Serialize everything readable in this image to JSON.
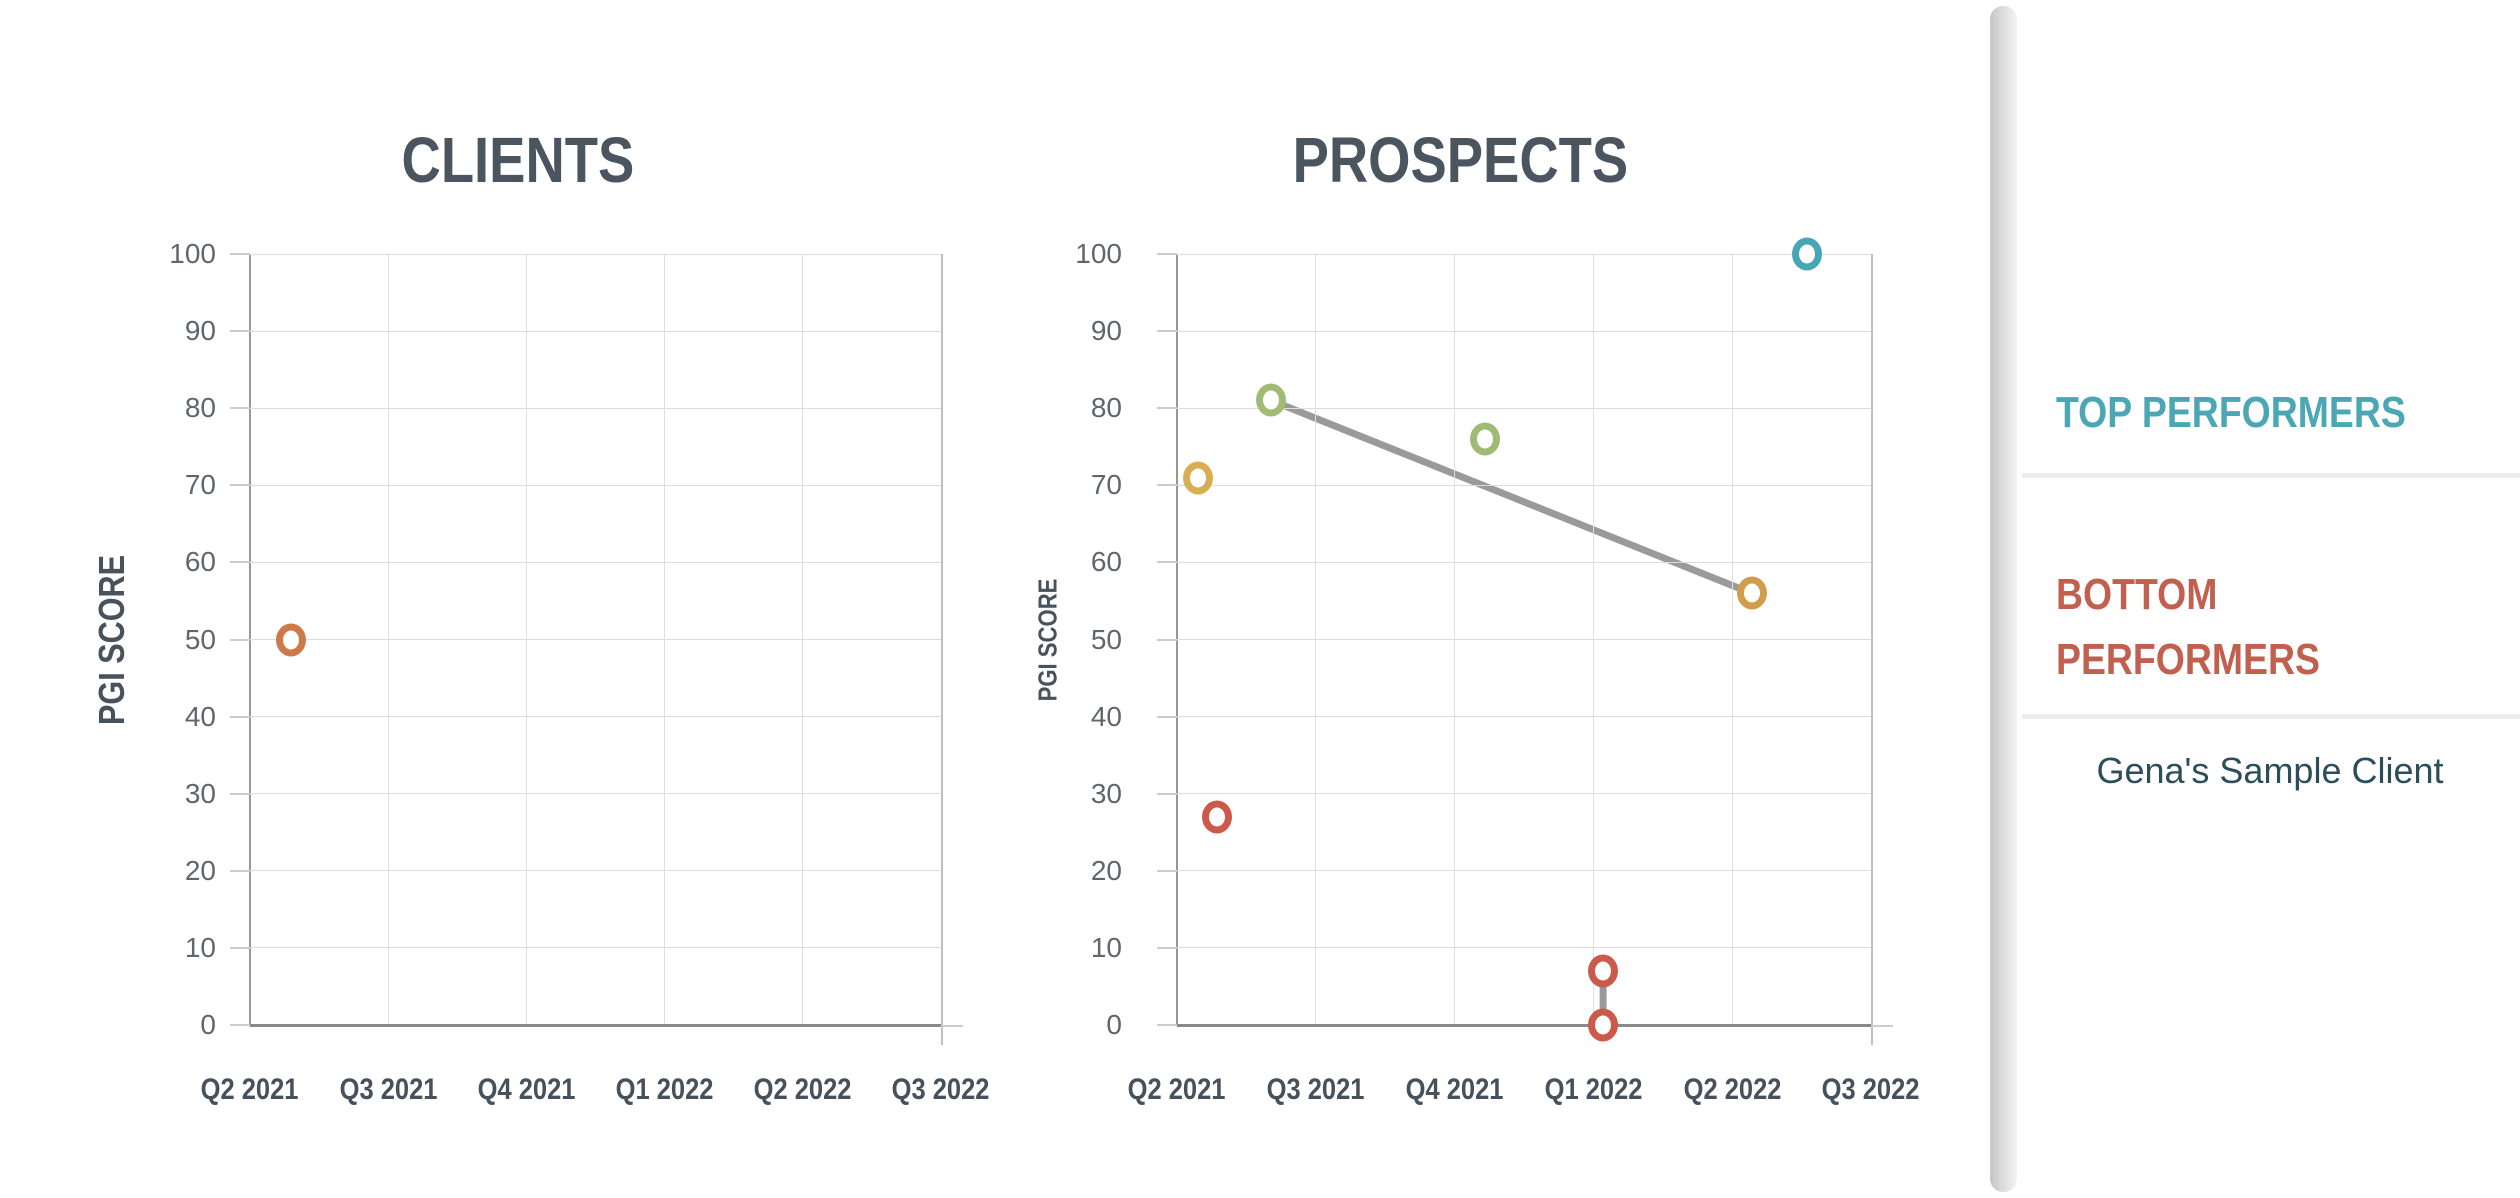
{
  "chart_data": [
    {
      "type": "scatter",
      "title": "CLIENTS",
      "y_axis_title": "PGI SCORE",
      "categories": [
        "Q2 2021",
        "Q3 2021",
        "Q4 2021",
        "Q1 2022",
        "Q2 2022",
        "Q3 2022"
      ],
      "y_ticks": [
        100,
        90,
        80,
        70,
        60,
        50,
        40,
        30,
        20,
        10,
        0
      ],
      "ylim": [
        0,
        100
      ],
      "grid": true,
      "legend": "none",
      "points": [
        {
          "x": 0.3,
          "y": 50,
          "color": "#CE7A48"
        }
      ],
      "lines": []
    },
    {
      "type": "scatter",
      "title": "PROSPECTS",
      "y_axis_title": "PGI SCORE",
      "categories": [
        "Q2 2021",
        "Q3 2021",
        "Q4 2021",
        "Q1 2022",
        "Q2 2022",
        "Q3 2022"
      ],
      "y_ticks": [
        100,
        90,
        80,
        70,
        60,
        50,
        40,
        30,
        20,
        10,
        0
      ],
      "ylim": [
        0,
        100
      ],
      "grid": true,
      "legend": "none",
      "points": [
        {
          "x": 0.15,
          "y": 71,
          "color": "#D9AE52"
        },
        {
          "x": 0.29,
          "y": 27,
          "color": "#CC5A4A"
        },
        {
          "x": 0.68,
          "y": 81,
          "color": "#A0BC74"
        },
        {
          "x": 2.22,
          "y": 76,
          "color": "#A0BC74"
        },
        {
          "x": 3.07,
          "y": 7,
          "color": "#CC5A4A"
        },
        {
          "x": 3.07,
          "y": 0,
          "color": "#CC5A4A"
        },
        {
          "x": 4.14,
          "y": 56,
          "color": "#D19C4C"
        },
        {
          "x": 4.54,
          "y": 100,
          "color": "#47A6B5"
        }
      ],
      "lines": [
        {
          "from": {
            "x": 0.68,
            "y": 81
          },
          "to": {
            "x": 4.14,
            "y": 56
          }
        },
        {
          "from": {
            "x": 3.07,
            "y": 7
          },
          "to": {
            "x": 3.07,
            "y": 0
          }
        }
      ],
      "line_color": "#9A9A9A"
    }
  ],
  "sidebar": {
    "top_performers_label": "TOP PERFORMERS",
    "bottom_performers_label": "BOTTOM PERFORMERS",
    "client_name": "Gena's Sample Client",
    "top_color": "#4BA7B4",
    "bottom_color": "#C2604F",
    "client_color": "#2B4E59"
  },
  "colors": {
    "title_text": "#4A5560",
    "axis_label_text": "#47515B",
    "tick_text": "#60666E",
    "gridline": "#dcdcdc",
    "axis_line": "#8a8a8a",
    "connector_line": "#9A9A9A"
  }
}
